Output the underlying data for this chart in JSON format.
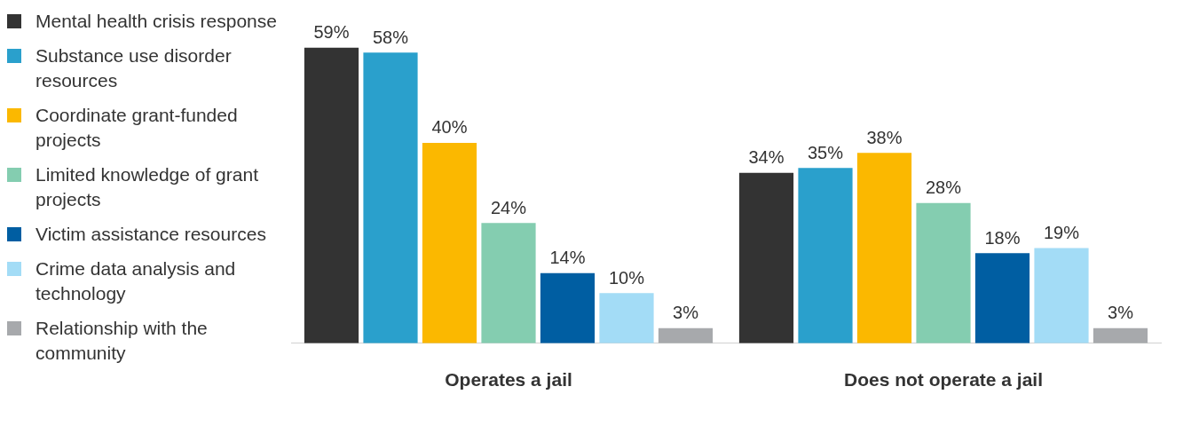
{
  "chart_data": {
    "type": "bar",
    "categories": [
      "Operates a jail",
      "Does not operate a jail"
    ],
    "series": [
      {
        "name": "Mental health crisis response",
        "color": "#333333",
        "values": [
          59,
          34
        ],
        "value_labels": [
          "59%",
          "34%"
        ]
      },
      {
        "name": "Substance use disorder resources",
        "color": "#2aa0cc",
        "values": [
          58,
          35
        ],
        "value_labels": [
          "58%",
          "35%"
        ]
      },
      {
        "name": "Coordinate grant-funded projects",
        "color": "#fbb800",
        "values": [
          40,
          38
        ],
        "value_labels": [
          "40%",
          "38%"
        ]
      },
      {
        "name": "Limited knowledge of grant projects",
        "color": "#84cdb0",
        "values": [
          24,
          28
        ],
        "value_labels": [
          "24%",
          "28%"
        ]
      },
      {
        "name": "Victim assistance resources",
        "color": "#005ea2",
        "values": [
          14,
          18
        ],
        "value_labels": [
          "14%",
          "18%"
        ]
      },
      {
        "name": "Crime data analysis and technology",
        "color": "#a3dcf6",
        "values": [
          10,
          19
        ],
        "value_labels": [
          "10%",
          "19%"
        ]
      },
      {
        "name": "Relationship with the community",
        "color": "#a7a9ac",
        "values": [
          3,
          3
        ],
        "value_labels": [
          "3%",
          "3%"
        ]
      }
    ],
    "legend": "left",
    "grid": false,
    "tick_labels": "x"
  }
}
